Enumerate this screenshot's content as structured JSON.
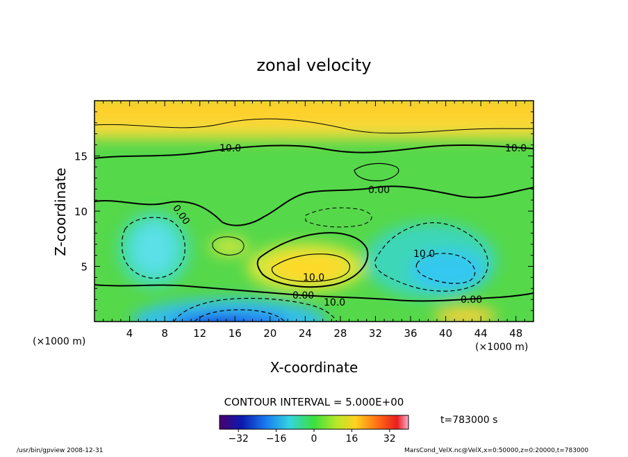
{
  "chart_data": {
    "type": "heatmap",
    "title": "zonal velocity",
    "xlabel": "X-coordinate",
    "ylabel": "Z-coordinate",
    "x_unit": "(×1000 m)",
    "y_unit": "(×1000 m)",
    "xlim": [
      0,
      50
    ],
    "ylim": [
      0,
      20
    ],
    "x_ticks": [
      4,
      8,
      12,
      16,
      20,
      24,
      28,
      32,
      36,
      40,
      44,
      48
    ],
    "y_ticks": [
      5,
      10,
      15
    ],
    "contour_interval_label": "CONTOUR INTERVAL = 5.000E+00",
    "contour_labels": [
      "10.0",
      "10.0",
      "0.00",
      "0.00",
      "10.0",
      "10.0",
      "0.00",
      "10.0",
      "0.00"
    ],
    "colorbar": {
      "min": -40,
      "max": 40,
      "ticks": [
        -32,
        -16,
        0,
        16,
        32
      ],
      "tick_labels": [
        "−32",
        "−16",
        "0",
        "16",
        "32"
      ]
    },
    "time_label": "t=783000 s",
    "footer_left": "/usr/bin/gpview   2008-12-31",
    "footer_right": "MarsCond_VelX.nc@VelX,x=0:50000,z=0:20000,t=783000",
    "field_regions": [
      {
        "name": "upper-layer",
        "x": [
          0,
          50
        ],
        "z": [
          15.5,
          20
        ],
        "approx_value": 12
      },
      {
        "name": "mid-jet",
        "x": [
          20,
          30
        ],
        "z": [
          3.5,
          6
        ],
        "approx_value": 14
      },
      {
        "name": "left-negative",
        "x": [
          3,
          10
        ],
        "z": [
          4,
          9
        ],
        "approx_value": -6
      },
      {
        "name": "right-negative",
        "x": [
          33,
          46
        ],
        "z": [
          3,
          9
        ],
        "approx_value": -10
      },
      {
        "name": "bottom-negative",
        "x": [
          10,
          26
        ],
        "z": [
          0,
          2
        ],
        "approx_value": -22
      }
    ]
  }
}
